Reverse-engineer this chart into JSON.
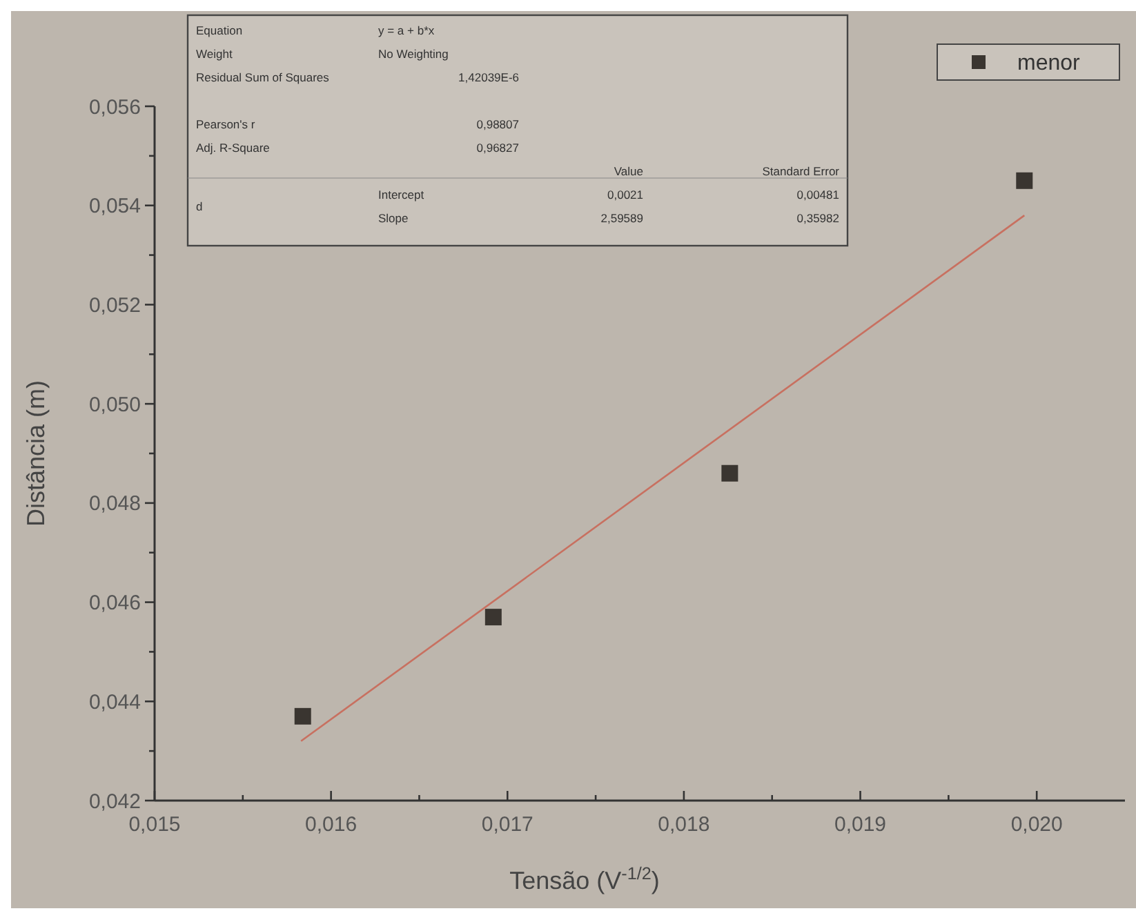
{
  "chart_data": {
    "type": "scatter",
    "xlabel": "Tensão (V$^{-1/2}$)",
    "ylabel": "Distância (m)",
    "series": [
      {
        "name": "menor",
        "color": "#3a3530",
        "marker": "square",
        "x": [
          0.01584,
          0.01692,
          0.01826,
          0.01993
        ],
        "values": [
          0.0437,
          0.0457,
          0.0486,
          0.0545
        ]
      },
      {
        "type": "line",
        "color": "#c87060",
        "line_style": "solid",
        "marker": "none",
        "x": [
          0.01583,
          0.01993
        ],
        "values": [
          0.0432,
          0.0538
        ]
      }
    ],
    "xlim": [
      0.015,
      0.0205
    ],
    "xticks": [
      {
        "value": 0.015,
        "label": "0,015"
      },
      {
        "value": 0.0155,
        "label": null
      },
      {
        "value": 0.016,
        "label": "0,016"
      },
      {
        "value": 0.0165,
        "label": null
      },
      {
        "value": 0.017,
        "label": "0,017"
      },
      {
        "value": 0.0175,
        "label": null
      },
      {
        "value": 0.018,
        "label": "0,018"
      },
      {
        "value": 0.0185,
        "label": null
      },
      {
        "value": 0.019,
        "label": "0,019"
      },
      {
        "value": 0.0195,
        "label": null
      },
      {
        "value": 0.02,
        "label": "0,020"
      }
    ],
    "ylim": [
      0.042,
      0.056
    ],
    "yticks": [
      {
        "value": 0.042,
        "label": "0,042"
      },
      {
        "value": 0.043,
        "label": null
      },
      {
        "value": 0.044,
        "label": "0,044"
      },
      {
        "value": 0.045,
        "label": null
      },
      {
        "value": 0.046,
        "label": "0,046"
      },
      {
        "value": 0.047,
        "label": null
      },
      {
        "value": 0.048,
        "label": "0,048"
      },
      {
        "value": 0.049,
        "label": null
      },
      {
        "value": 0.05,
        "label": "0,050"
      },
      {
        "value": 0.051,
        "label": null
      },
      {
        "value": 0.052,
        "label": "0,052"
      },
      {
        "value": 0.053,
        "label": null
      },
      {
        "value": 0.054,
        "label": "0,054"
      },
      {
        "value": 0.055,
        "label": null
      },
      {
        "value": 0.056,
        "label": "0,056"
      }
    ],
    "grid": false,
    "legend": "top right",
    "annotations": [
      "Equation",
      "y = a + b*x",
      "Weight",
      "No Weighting",
      "Residual Sum of Squares",
      "1,42039E-6",
      "Pearson's r",
      "0,98807",
      "Adj. R-Square",
      "0,96827",
      "Value",
      "Standard Error",
      "d",
      "Intercept",
      "0,0021",
      "0,00481",
      "Slope",
      "2,59589",
      "0,35982"
    ]
  }
}
